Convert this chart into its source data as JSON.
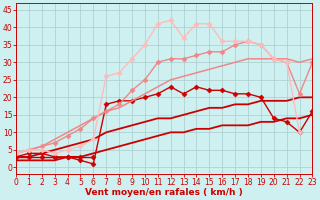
{
  "background_color": "#cff0f0",
  "grid_color": "#aacccc",
  "xlabel": "Vent moyen/en rafales ( km/h )",
  "xlim": [
    0,
    23
  ],
  "ylim": [
    -2,
    47
  ],
  "yticks": [
    0,
    5,
    10,
    15,
    20,
    25,
    30,
    35,
    40,
    45
  ],
  "xticks": [
    0,
    1,
    2,
    3,
    4,
    5,
    6,
    7,
    8,
    9,
    10,
    11,
    12,
    13,
    14,
    15,
    16,
    17,
    18,
    19,
    20,
    21,
    22,
    23
  ],
  "series": [
    {
      "x": [
        0,
        1,
        2,
        3,
        4,
        5,
        6,
        7,
        8,
        9,
        10,
        11,
        12,
        13,
        14,
        15,
        16,
        17,
        18,
        19,
        20,
        21,
        22,
        23
      ],
      "y": [
        3,
        3,
        3,
        3,
        3,
        3,
        3,
        null,
        null,
        null,
        null,
        null,
        null,
        null,
        null,
        null,
        null,
        null,
        null,
        null,
        null,
        null,
        null,
        null
      ],
      "color": "#cc0000",
      "marker": "D",
      "markersize": 2.5,
      "linewidth": 1.0,
      "linestyle": "-"
    },
    {
      "x": [
        0,
        1,
        2,
        3,
        4,
        5,
        6,
        7,
        8,
        9,
        10,
        11,
        12,
        13,
        14,
        15,
        16,
        17,
        18,
        19,
        20,
        21,
        22,
        23
      ],
      "y": [
        3,
        4,
        4,
        3,
        3,
        2,
        1,
        18,
        19,
        19,
        20,
        21,
        23,
        21,
        23,
        22,
        22,
        21,
        21,
        20,
        14,
        13,
        10,
        16
      ],
      "color": "#cc0000",
      "marker": "D",
      "markersize": 2.5,
      "linewidth": 1.0,
      "linestyle": "-"
    },
    {
      "x": [
        0,
        1,
        2,
        3,
        4,
        5,
        6,
        7,
        8,
        9,
        10,
        11,
        12,
        13,
        14,
        15,
        16,
        17,
        18,
        19,
        20,
        21,
        22,
        23
      ],
      "y": [
        2,
        2,
        2,
        2,
        3,
        3,
        4,
        5,
        6,
        7,
        8,
        9,
        10,
        10,
        11,
        11,
        12,
        12,
        12,
        13,
        13,
        14,
        14,
        15
      ],
      "color": "#cc0000",
      "marker": null,
      "markersize": 0,
      "linewidth": 1.3,
      "linestyle": "-"
    },
    {
      "x": [
        0,
        1,
        2,
        3,
        4,
        5,
        6,
        7,
        8,
        9,
        10,
        11,
        12,
        13,
        14,
        15,
        16,
        17,
        18,
        19,
        20,
        21,
        22,
        23
      ],
      "y": [
        3,
        3,
        4,
        5,
        6,
        7,
        8,
        10,
        11,
        12,
        13,
        14,
        14,
        15,
        16,
        17,
        17,
        18,
        18,
        19,
        19,
        19,
        20,
        20
      ],
      "color": "#cc0000",
      "marker": null,
      "markersize": 0,
      "linewidth": 1.3,
      "linestyle": "-"
    },
    {
      "x": [
        0,
        1,
        2,
        3,
        4,
        5,
        6,
        7,
        8,
        9,
        10,
        11,
        12,
        13,
        14,
        15,
        16,
        17,
        18,
        19,
        20,
        21,
        22,
        23
      ],
      "y": [
        4,
        5,
        6,
        8,
        10,
        12,
        14,
        16,
        17,
        19,
        21,
        23,
        25,
        26,
        27,
        28,
        29,
        30,
        31,
        31,
        31,
        31,
        30,
        31
      ],
      "color": "#ee8888",
      "marker": null,
      "markersize": 0,
      "linewidth": 1.1,
      "linestyle": "-"
    },
    {
      "x": [
        0,
        1,
        2,
        3,
        4,
        5,
        6,
        7,
        8,
        9,
        10,
        11,
        12,
        13,
        14,
        15,
        16,
        17,
        18,
        19,
        20,
        21,
        22,
        23
      ],
      "y": [
        4,
        5,
        6,
        7,
        9,
        11,
        14,
        16,
        18,
        22,
        25,
        30,
        31,
        31,
        32,
        33,
        33,
        35,
        36,
        35,
        31,
        30,
        21,
        30
      ],
      "color": "#ee8888",
      "marker": "D",
      "markersize": 2.5,
      "linewidth": 1.0,
      "linestyle": "-"
    },
    {
      "x": [
        0,
        1,
        2,
        3,
        4,
        5,
        6,
        7,
        8,
        9,
        10,
        11,
        12,
        13,
        14,
        15,
        16,
        17,
        18,
        19,
        20,
        21,
        22,
        23
      ],
      "y": [
        4,
        5,
        5,
        4,
        5,
        6,
        8,
        26,
        27,
        31,
        35,
        41,
        42,
        37,
        41,
        41,
        36,
        36,
        36,
        35,
        31,
        30,
        10,
        null
      ],
      "color": "#ffbbbb",
      "marker": "D",
      "markersize": 2.5,
      "linewidth": 1.0,
      "linestyle": "-"
    }
  ],
  "tick_label_fontsize": 5.5,
  "xlabel_fontsize": 6.5,
  "tick_color": "#cc0000",
  "axis_color": "#cc0000",
  "xlabel_color": "#cc0000"
}
